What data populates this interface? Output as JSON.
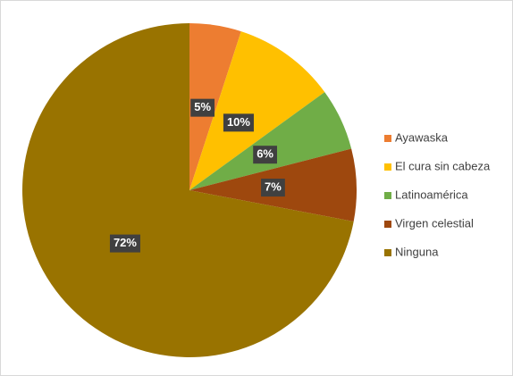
{
  "chart_data": {
    "type": "pie",
    "categories": [
      "Ayawaska",
      "El cura sin cabeza",
      "Latinoamérica",
      "Virgen celestial",
      "Ninguna"
    ],
    "values": [
      5,
      10,
      6,
      7,
      72
    ],
    "value_labels": [
      "5%",
      "10%",
      "6%",
      "7%",
      "72%"
    ],
    "colors": [
      "#ed7d31",
      "#ffc000",
      "#70ad47",
      "#9e480e",
      "#997300"
    ],
    "legend": "right"
  }
}
